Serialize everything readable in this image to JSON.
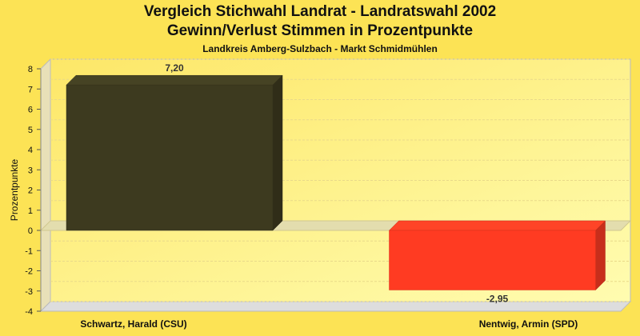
{
  "chart_data": {
    "type": "bar",
    "title": "Vergleich Stichwahl Landrat - Landratswahl 2002",
    "subtitle": "Gewinn/Verlust Stimmen in Prozentpunkte",
    "subtitle2": "Landkreis Amberg-Sulzbach - Markt Schmidmühlen",
    "ylabel": "Prozentpunkte",
    "xlabel": "",
    "categories": [
      "Schwartz, Harald (CSU)",
      "Nentwig, Armin (SPD)"
    ],
    "values": [
      7.2,
      -2.95
    ],
    "value_labels": [
      "7,20",
      "-2,95"
    ],
    "colors": [
      "#3D3A1F",
      "#FF3B22"
    ],
    "ylim": [
      -4,
      8
    ],
    "yticks": [
      8,
      7,
      6,
      5,
      4,
      3,
      2,
      1,
      0,
      -1,
      -2,
      -3,
      -4
    ],
    "grid": true,
    "legend": "none"
  }
}
